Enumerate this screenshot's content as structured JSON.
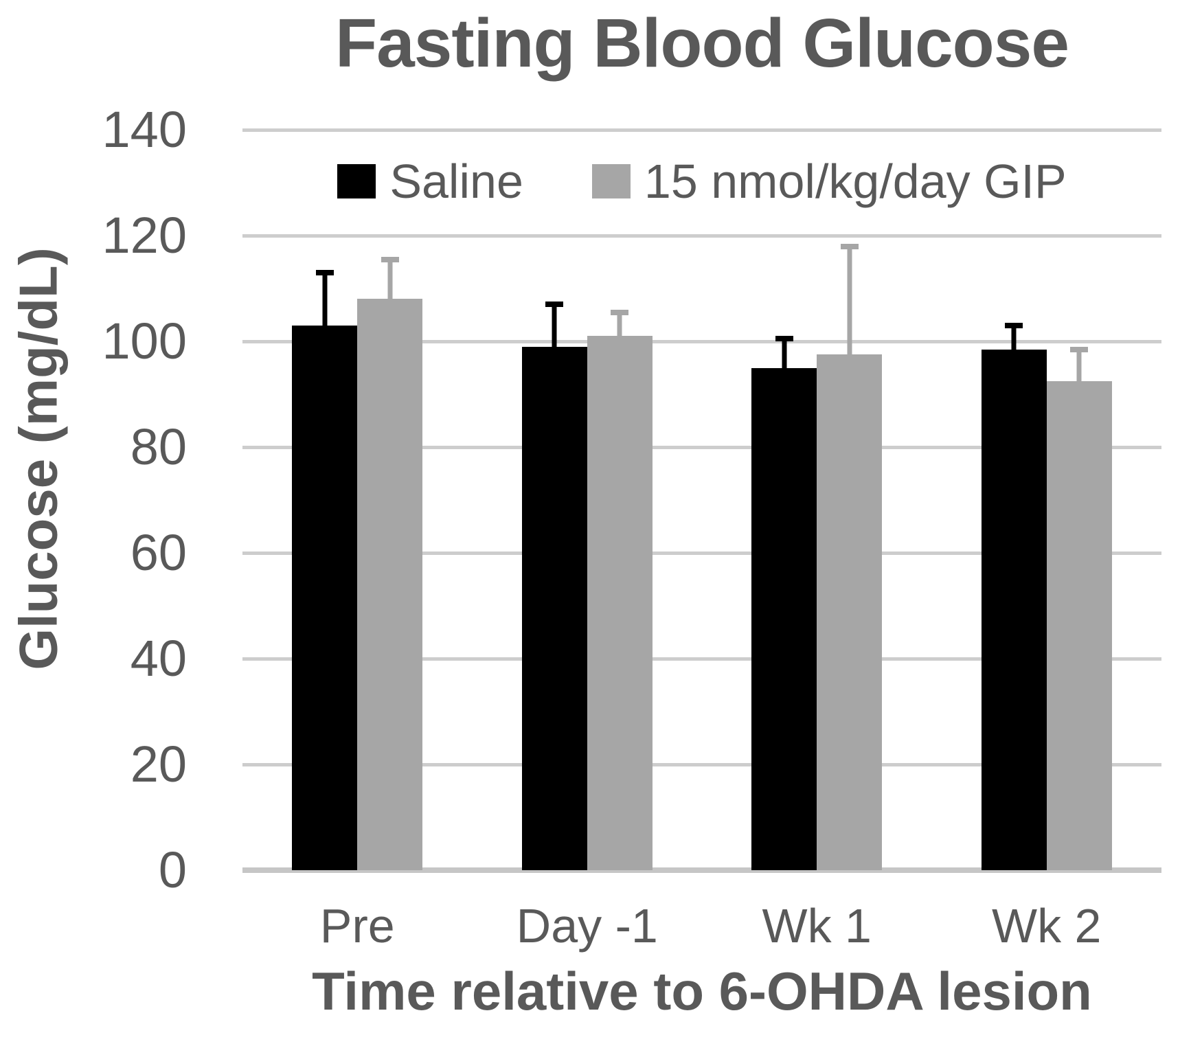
{
  "chart_data": {
    "type": "bar",
    "title": "Fasting Blood Glucose",
    "xlabel": "Time relative to 6-OHDA lesion",
    "ylabel": "Glucose (mg/dL)",
    "categories": [
      "Pre",
      "Day -1",
      "Wk 1",
      "Wk 2"
    ],
    "series": [
      {
        "name": "Saline",
        "color": "#000000",
        "values": [
          103,
          99,
          95,
          98.5
        ],
        "errors_plus": [
          10.5,
          8.5,
          6,
          5
        ]
      },
      {
        "name": "15 nmol/kg/day GIP",
        "color": "#a6a6a6",
        "values": [
          108,
          101,
          97.5,
          92.5
        ],
        "errors_plus": [
          8,
          5,
          21,
          6.5
        ]
      }
    ],
    "ylim": [
      0,
      140
    ],
    "yticks": [
      0,
      20,
      40,
      60,
      80,
      100,
      120,
      140
    ],
    "grid": true,
    "legend_position": "top-center",
    "error_bars": "upper-only"
  },
  "colors": {
    "text": "#595959",
    "gridline": "#cdcdcd",
    "axis_line": "#c6c6c6",
    "background": "#ffffff"
  }
}
